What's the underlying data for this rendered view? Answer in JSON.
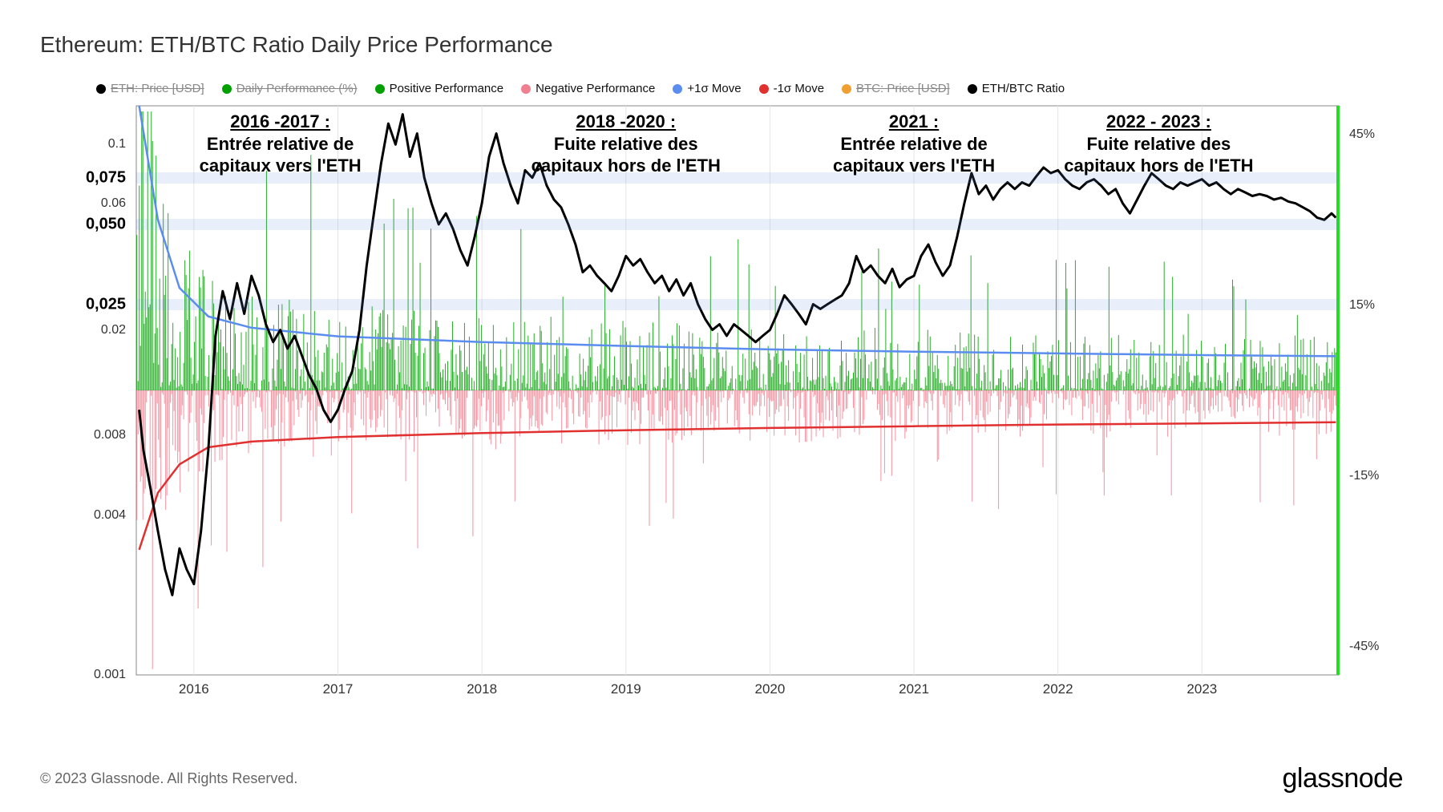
{
  "title": "Ethereum: ETH/BTC Ratio Daily Price Performance",
  "copyright": "© 2023 Glassnode. All Rights Reserved.",
  "brand": "glassnode",
  "colors": {
    "eth_price": "#000000",
    "daily_perf": "#00a000",
    "positive": "#00a000",
    "negative": "#f08090",
    "plus_sigma": "#5b8def",
    "minus_sigma": "#e03030",
    "btc_price": "#f0a030",
    "ethbtc_ratio": "#000000",
    "grid": "#e5e5e5",
    "hband": "rgba(100,140,220,0.15)",
    "bg": "#ffffff",
    "right_edge": "#20e020"
  },
  "legend": [
    {
      "label": "ETH: Price [USD]",
      "color": "#000000",
      "struck": true
    },
    {
      "label": "Daily Performance (%)",
      "color": "#00a000",
      "struck": true
    },
    {
      "label": "Positive Performance",
      "color": "#00a000",
      "struck": false
    },
    {
      "label": "Negative Performance",
      "color": "#f08090",
      "struck": false
    },
    {
      "label": "+1σ Move",
      "color": "#5b8def",
      "struck": false
    },
    {
      "label": "-1σ Move",
      "color": "#e03030",
      "struck": false
    },
    {
      "label": "BTC: Price [USD]",
      "color": "#f0a030",
      "struck": true
    },
    {
      "label": "ETH/BTC Ratio",
      "color": "#000000",
      "struck": false
    }
  ],
  "y_left": {
    "scale": "log",
    "min": 0.001,
    "max": 0.14,
    "ticks": [
      {
        "v": 0.1,
        "label": "0.1",
        "bold": false
      },
      {
        "v": 0.075,
        "label": "0,075",
        "bold": true
      },
      {
        "v": 0.06,
        "label": "0.06",
        "bold": false
      },
      {
        "v": 0.05,
        "label": "0,050",
        "bold": true
      },
      {
        "v": 0.025,
        "label": "0,025",
        "bold": true
      },
      {
        "v": 0.02,
        "label": "0.02",
        "bold": false
      },
      {
        "v": 0.008,
        "label": "0.008",
        "bold": false
      },
      {
        "v": 0.004,
        "label": "0.004",
        "bold": false
      },
      {
        "v": 0.001,
        "label": "0.001",
        "bold": false
      }
    ],
    "hbands": [
      0.075,
      0.05,
      0.025
    ]
  },
  "y_right": {
    "scale": "linear",
    "min": -50,
    "max": 50,
    "zero": 0,
    "ticks": [
      {
        "v": 45,
        "label": "45%"
      },
      {
        "v": 15,
        "label": "15%"
      },
      {
        "v": -15,
        "label": "-15%"
      },
      {
        "v": -45,
        "label": "-45%"
      }
    ]
  },
  "x": {
    "min": 2015.6,
    "max": 2023.95,
    "ticks": [
      2016,
      2017,
      2018,
      2019,
      2020,
      2021,
      2022,
      2023
    ]
  },
  "annotations": [
    {
      "x": 2016.6,
      "header": "2016 -2017 :",
      "l1": "Entrée relative de",
      "l2": "capitaux vers l'ETH"
    },
    {
      "x": 2019.0,
      "header": "2018 -2020 :",
      "l1": "Fuite relative des",
      "l2": "capitaux hors de l'ETH"
    },
    {
      "x": 2021.0,
      "header": "2021 :",
      "l1": "Entrée relative de",
      "l2": "capitaux vers l'ETH"
    },
    {
      "x": 2022.7,
      "header": "2022 - 2023 :",
      "l1": "Fuite relative des",
      "l2": "capitaux hors de l'ETH"
    }
  ],
  "ethbtc_series": [
    [
      2015.62,
      0.01
    ],
    [
      2015.65,
      0.007
    ],
    [
      2015.7,
      0.005
    ],
    [
      2015.75,
      0.0035
    ],
    [
      2015.8,
      0.0025
    ],
    [
      2015.85,
      0.002
    ],
    [
      2015.9,
      0.003
    ],
    [
      2015.95,
      0.0025
    ],
    [
      2016.0,
      0.0022
    ],
    [
      2016.05,
      0.0035
    ],
    [
      2016.1,
      0.007
    ],
    [
      2016.15,
      0.019
    ],
    [
      2016.2,
      0.028
    ],
    [
      2016.25,
      0.022
    ],
    [
      2016.3,
      0.03
    ],
    [
      2016.35,
      0.023
    ],
    [
      2016.4,
      0.032
    ],
    [
      2016.45,
      0.027
    ],
    [
      2016.5,
      0.021
    ],
    [
      2016.55,
      0.018
    ],
    [
      2016.6,
      0.02
    ],
    [
      2016.65,
      0.017
    ],
    [
      2016.7,
      0.019
    ],
    [
      2016.75,
      0.016
    ],
    [
      2016.8,
      0.0135
    ],
    [
      2016.85,
      0.012
    ],
    [
      2016.9,
      0.01
    ],
    [
      2016.95,
      0.009
    ],
    [
      2017.0,
      0.01
    ],
    [
      2017.05,
      0.012
    ],
    [
      2017.1,
      0.014
    ],
    [
      2017.15,
      0.02
    ],
    [
      2017.2,
      0.035
    ],
    [
      2017.25,
      0.055
    ],
    [
      2017.3,
      0.085
    ],
    [
      2017.35,
      0.12
    ],
    [
      2017.4,
      0.1
    ],
    [
      2017.45,
      0.13
    ],
    [
      2017.5,
      0.09
    ],
    [
      2017.55,
      0.11
    ],
    [
      2017.6,
      0.075
    ],
    [
      2017.65,
      0.06
    ],
    [
      2017.7,
      0.05
    ],
    [
      2017.75,
      0.055
    ],
    [
      2017.8,
      0.048
    ],
    [
      2017.85,
      0.04
    ],
    [
      2017.9,
      0.035
    ],
    [
      2017.95,
      0.045
    ],
    [
      2018.0,
      0.06
    ],
    [
      2018.05,
      0.09
    ],
    [
      2018.1,
      0.11
    ],
    [
      2018.15,
      0.085
    ],
    [
      2018.2,
      0.07
    ],
    [
      2018.25,
      0.06
    ],
    [
      2018.3,
      0.08
    ],
    [
      2018.35,
      0.075
    ],
    [
      2018.4,
      0.085
    ],
    [
      2018.45,
      0.07
    ],
    [
      2018.5,
      0.062
    ],
    [
      2018.55,
      0.058
    ],
    [
      2018.6,
      0.05
    ],
    [
      2018.65,
      0.042
    ],
    [
      2018.7,
      0.033
    ],
    [
      2018.75,
      0.035
    ],
    [
      2018.8,
      0.032
    ],
    [
      2018.85,
      0.03
    ],
    [
      2018.9,
      0.028
    ],
    [
      2018.95,
      0.032
    ],
    [
      2019.0,
      0.038
    ],
    [
      2019.05,
      0.035
    ],
    [
      2019.1,
      0.037
    ],
    [
      2019.15,
      0.033
    ],
    [
      2019.2,
      0.03
    ],
    [
      2019.25,
      0.032
    ],
    [
      2019.3,
      0.028
    ],
    [
      2019.35,
      0.031
    ],
    [
      2019.4,
      0.027
    ],
    [
      2019.45,
      0.03
    ],
    [
      2019.5,
      0.025
    ],
    [
      2019.55,
      0.022
    ],
    [
      2019.6,
      0.02
    ],
    [
      2019.65,
      0.021
    ],
    [
      2019.7,
      0.019
    ],
    [
      2019.75,
      0.021
    ],
    [
      2019.8,
      0.02
    ],
    [
      2019.85,
      0.019
    ],
    [
      2019.9,
      0.018
    ],
    [
      2019.95,
      0.019
    ],
    [
      2020.0,
      0.02
    ],
    [
      2020.05,
      0.023
    ],
    [
      2020.1,
      0.027
    ],
    [
      2020.15,
      0.025
    ],
    [
      2020.2,
      0.023
    ],
    [
      2020.25,
      0.021
    ],
    [
      2020.3,
      0.025
    ],
    [
      2020.35,
      0.024
    ],
    [
      2020.4,
      0.025
    ],
    [
      2020.45,
      0.026
    ],
    [
      2020.5,
      0.027
    ],
    [
      2020.55,
      0.03
    ],
    [
      2020.6,
      0.038
    ],
    [
      2020.65,
      0.033
    ],
    [
      2020.7,
      0.035
    ],
    [
      2020.75,
      0.032
    ],
    [
      2020.8,
      0.03
    ],
    [
      2020.85,
      0.034
    ],
    [
      2020.9,
      0.029
    ],
    [
      2020.95,
      0.031
    ],
    [
      2021.0,
      0.032
    ],
    [
      2021.05,
      0.038
    ],
    [
      2021.1,
      0.042
    ],
    [
      2021.15,
      0.036
    ],
    [
      2021.2,
      0.032
    ],
    [
      2021.25,
      0.035
    ],
    [
      2021.3,
      0.045
    ],
    [
      2021.35,
      0.06
    ],
    [
      2021.4,
      0.078
    ],
    [
      2021.45,
      0.065
    ],
    [
      2021.5,
      0.07
    ],
    [
      2021.55,
      0.062
    ],
    [
      2021.6,
      0.068
    ],
    [
      2021.65,
      0.072
    ],
    [
      2021.7,
      0.068
    ],
    [
      2021.75,
      0.072
    ],
    [
      2021.8,
      0.07
    ],
    [
      2021.85,
      0.076
    ],
    [
      2021.9,
      0.082
    ],
    [
      2021.95,
      0.078
    ],
    [
      2022.0,
      0.08
    ],
    [
      2022.05,
      0.074
    ],
    [
      2022.1,
      0.07
    ],
    [
      2022.15,
      0.068
    ],
    [
      2022.2,
      0.072
    ],
    [
      2022.25,
      0.074
    ],
    [
      2022.3,
      0.07
    ],
    [
      2022.35,
      0.065
    ],
    [
      2022.4,
      0.068
    ],
    [
      2022.45,
      0.06
    ],
    [
      2022.5,
      0.055
    ],
    [
      2022.55,
      0.062
    ],
    [
      2022.6,
      0.07
    ],
    [
      2022.65,
      0.078
    ],
    [
      2022.7,
      0.074
    ],
    [
      2022.75,
      0.07
    ],
    [
      2022.8,
      0.068
    ],
    [
      2022.85,
      0.072
    ],
    [
      2022.9,
      0.07
    ],
    [
      2022.95,
      0.072
    ],
    [
      2023.0,
      0.074
    ],
    [
      2023.05,
      0.07
    ],
    [
      2023.1,
      0.072
    ],
    [
      2023.15,
      0.068
    ],
    [
      2023.2,
      0.065
    ],
    [
      2023.25,
      0.068
    ],
    [
      2023.3,
      0.066
    ],
    [
      2023.35,
      0.064
    ],
    [
      2023.4,
      0.065
    ],
    [
      2023.45,
      0.064
    ],
    [
      2023.5,
      0.062
    ],
    [
      2023.55,
      0.063
    ],
    [
      2023.6,
      0.061
    ],
    [
      2023.65,
      0.06
    ],
    [
      2023.7,
      0.058
    ],
    [
      2023.75,
      0.056
    ],
    [
      2023.8,
      0.053
    ],
    [
      2023.85,
      0.052
    ],
    [
      2023.9,
      0.055
    ],
    [
      2023.93,
      0.053
    ]
  ],
  "sigma_curves": {
    "plus": [
      [
        2015.62,
        50
      ],
      [
        2015.75,
        30
      ],
      [
        2015.9,
        18
      ],
      [
        2016.1,
        13
      ],
      [
        2016.4,
        11
      ],
      [
        2017.0,
        9.5
      ],
      [
        2018.0,
        8.5
      ],
      [
        2019.0,
        7.8
      ],
      [
        2020.0,
        7.2
      ],
      [
        2021.0,
        6.8
      ],
      [
        2022.0,
        6.5
      ],
      [
        2023.0,
        6.2
      ],
      [
        2023.93,
        6.0
      ]
    ],
    "minus": [
      [
        2015.62,
        -28
      ],
      [
        2015.75,
        -18
      ],
      [
        2015.9,
        -13
      ],
      [
        2016.1,
        -10
      ],
      [
        2016.4,
        -9
      ],
      [
        2017.0,
        -8.2
      ],
      [
        2018.0,
        -7.5
      ],
      [
        2019.0,
        -7.0
      ],
      [
        2020.0,
        -6.6
      ],
      [
        2021.0,
        -6.3
      ],
      [
        2022.0,
        -6.0
      ],
      [
        2023.0,
        -5.8
      ],
      [
        2023.93,
        -5.6
      ]
    ]
  },
  "bar_density_per_year": 120,
  "bar_style": {
    "pos_color": "#00a000",
    "neg_color": "#f08090",
    "width": 1
  }
}
